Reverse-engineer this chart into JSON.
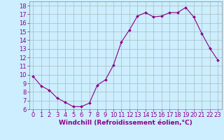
{
  "x": [
    0,
    1,
    2,
    3,
    4,
    5,
    6,
    7,
    8,
    9,
    10,
    11,
    12,
    13,
    14,
    15,
    16,
    17,
    18,
    19,
    20,
    21,
    22,
    23
  ],
  "y": [
    9.8,
    8.7,
    8.2,
    7.3,
    6.8,
    6.3,
    6.3,
    6.7,
    8.8,
    9.4,
    11.1,
    13.8,
    15.2,
    16.8,
    17.2,
    16.7,
    16.8,
    17.2,
    17.2,
    17.8,
    16.7,
    14.8,
    13.1,
    11.7
  ],
  "line_color": "#880088",
  "marker": "D",
  "marker_size": 2.0,
  "bg_color": "#cceeff",
  "grid_color": "#aabbbb",
  "xlabel": "Windchill (Refroidissement éolien,°C)",
  "xlabel_color": "#880088",
  "xlabel_fontsize": 6.5,
  "tick_color": "#880088",
  "tick_fontsize": 6.0,
  "ylim": [
    6,
    18.5
  ],
  "yticks": [
    6,
    7,
    8,
    9,
    10,
    11,
    12,
    13,
    14,
    15,
    16,
    17,
    18
  ],
  "xticks": [
    0,
    1,
    2,
    3,
    4,
    5,
    6,
    7,
    8,
    9,
    10,
    11,
    12,
    13,
    14,
    15,
    16,
    17,
    18,
    19,
    20,
    21,
    22,
    23
  ]
}
